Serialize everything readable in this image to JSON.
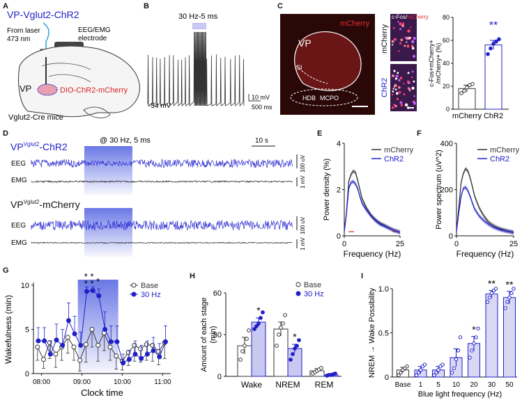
{
  "colors": {
    "blue": "#2020c8",
    "stim": "#5060e0",
    "black": "#111111",
    "red": "#dd2020",
    "gray": "#555555",
    "dark": "#333333"
  },
  "panels": {
    "A": "A",
    "B": "B",
    "C": "C",
    "D": "D",
    "E": "E",
    "F": "F",
    "G": "G",
    "H": "H",
    "I": "I"
  },
  "panel_a": {
    "title": "VP-Vglut2-ChR2",
    "laser": "From laser",
    "nm": "473 nm",
    "electrode1": "EEG/EMG",
    "electrode2": "electrode",
    "vp": "VP",
    "dio": "DIO-ChR2-mCherry",
    "mice": "Vglut2-Cre mice"
  },
  "panel_b": {
    "stim": "30 Hz-5 ms",
    "vm": "-54 mV",
    "scale_v": "10 mV",
    "scale_t": "500 ms"
  },
  "panel_c": {
    "mcherry_label": "mCherry",
    "vp": "VP",
    "si": "SI",
    "hdb": "HDB",
    "mcpo": "MCPO",
    "cfos": "c-Fos/",
    "cfos_m": "mCherry",
    "row1": "mCherry",
    "row2": "ChR2"
  },
  "panel_d": {
    "title1_a": "VP",
    "title1_sup": "Vglut2",
    "title1_b": "-ChR2",
    "title2_a": "VP",
    "title2_sup": "Vglut2",
    "title2_b": "-mCherry",
    "stim": "@ 30 Hz, 5 ms",
    "scale": "10 s",
    "eeg": "EEG",
    "emg": "EMG",
    "uv": "100 uV",
    "mv": "1 mV"
  },
  "chart_data": [
    {
      "id": "C",
      "type": "bar",
      "title": "",
      "categories": [
        "mCherry",
        "ChR2"
      ],
      "values": [
        18,
        56
      ],
      "errors": [
        3,
        4
      ],
      "points": [
        [
          14,
          16,
          19,
          21,
          22
        ],
        [
          48,
          53,
          57,
          59,
          61
        ]
      ],
      "ylabel": "c-Fos+mCherry+ /mCherry+ (%)",
      "ylabel1": "c-Fos+mCherry+",
      "ylabel2": "/mCherry+ (%)",
      "ylim": [
        0,
        80
      ],
      "yticks": [
        "0",
        "20",
        "40",
        "60",
        "80"
      ],
      "significance": "**"
    },
    {
      "id": "E",
      "type": "line",
      "xlabel": "Frequency (Hz)",
      "ylabel": "Power density (%)",
      "xlim": [
        0,
        25
      ],
      "ylim": [
        0,
        4
      ],
      "xticks": [
        "0",
        "25"
      ],
      "yticks": [
        "0",
        "2",
        "4"
      ],
      "legend": [
        "mCherry",
        "ChR2"
      ],
      "series": [
        {
          "name": "mCherry",
          "x": [
            0,
            1,
            2,
            3,
            4,
            5,
            6,
            7,
            8,
            10,
            12,
            14,
            16,
            18,
            20,
            22,
            25
          ],
          "y": [
            0.2,
            1.0,
            2.35,
            2.65,
            2.8,
            2.75,
            2.4,
            2.0,
            1.6,
            1.2,
            0.9,
            0.7,
            0.55,
            0.45,
            0.35,
            0.25,
            0.15
          ]
        },
        {
          "name": "ChR2",
          "x": [
            0,
            1,
            2,
            3,
            4,
            5,
            6,
            7,
            8,
            10,
            12,
            14,
            16,
            18,
            20,
            22,
            25
          ],
          "y": [
            0.2,
            1.0,
            2.05,
            2.3,
            2.35,
            2.25,
            2.05,
            1.7,
            1.4,
            1.1,
            0.85,
            0.65,
            0.5,
            0.42,
            0.33,
            0.25,
            0.15
          ]
        }
      ]
    },
    {
      "id": "F",
      "type": "line",
      "xlabel": "Frequency (Hz)",
      "ylabel": "Power spectrum (uV^2)",
      "xlim": [
        0,
        25
      ],
      "ylim": [
        0,
        400
      ],
      "xticks": [
        "0",
        "25"
      ],
      "yticks": [
        "0",
        "200",
        "400"
      ],
      "legend": [
        "mCherry",
        "ChR2"
      ],
      "series": [
        {
          "name": "mCherry",
          "x": [
            0,
            1,
            2,
            3,
            4,
            5,
            6,
            7,
            8,
            10,
            12,
            14,
            16,
            18,
            20,
            22,
            25
          ],
          "y": [
            20,
            120,
            230,
            270,
            290,
            280,
            250,
            210,
            170,
            120,
            85,
            60,
            45,
            35,
            28,
            22,
            15
          ]
        },
        {
          "name": "ChR2",
          "x": [
            0,
            1,
            2,
            3,
            4,
            5,
            6,
            7,
            8,
            10,
            12,
            14,
            16,
            18,
            20,
            22,
            25
          ],
          "y": [
            20,
            100,
            170,
            205,
            210,
            195,
            170,
            140,
            115,
            85,
            65,
            50,
            38,
            30,
            24,
            20,
            14
          ]
        }
      ]
    },
    {
      "id": "G",
      "type": "line",
      "xlabel": "Clock time",
      "ylabel": "Wakefulness (min)",
      "ylim": [
        0,
        10
      ],
      "yticks": [
        "0",
        "5",
        "10"
      ],
      "xticks": [
        "08:00",
        "09:00",
        "10:00",
        "11:00"
      ],
      "xlim": [
        7.8,
        11.2
      ],
      "legend": [
        "Base",
        "30 Hz"
      ],
      "stim_window": [
        8.9,
        9.9
      ],
      "series": [
        {
          "name": "Base",
          "x": [
            7.9,
            8.05,
            8.2,
            8.35,
            8.5,
            8.65,
            8.8,
            8.95,
            9.1,
            9.25,
            9.4,
            9.55,
            9.7,
            9.85,
            10.0,
            10.15,
            10.3,
            10.45,
            10.6,
            10.75,
            10.9,
            11.05
          ],
          "y": [
            3.0,
            1.6,
            3.5,
            2.2,
            3.0,
            4.1,
            3.0,
            1.5,
            3.3,
            5.0,
            3.2,
            4.6,
            3.0,
            2.0,
            1.4,
            2.4,
            3.2,
            2.8,
            3.3,
            3.2,
            2.5,
            3.5
          ],
          "err": [
            1.5,
            1.0,
            1.8,
            1.5,
            1.5,
            1.8,
            1.5,
            1.2,
            2.0,
            2.0,
            1.8,
            2.0,
            1.5,
            1.5,
            1.0,
            1.5,
            1.8,
            1.5,
            1.8,
            1.8,
            1.5,
            1.8
          ]
        },
        {
          "name": "30 Hz",
          "x": [
            7.9,
            8.05,
            8.2,
            8.35,
            8.5,
            8.65,
            8.8,
            8.95,
            9.1,
            9.25,
            9.4,
            9.55,
            9.7,
            9.85,
            10.0,
            10.15,
            10.3,
            10.45,
            10.6,
            10.75,
            10.9,
            11.05
          ],
          "y": [
            3.7,
            3.7,
            2.2,
            3.8,
            3.2,
            6.0,
            4.5,
            3.2,
            9.3,
            9.4,
            8.8,
            5.0,
            3.6,
            3.6,
            1.2,
            1.6,
            2.2,
            1.7,
            2.2,
            2.6,
            1.9,
            3.6
          ],
          "err": [
            1.5,
            1.5,
            1.5,
            1.8,
            1.8,
            2.0,
            2.0,
            1.5,
            0.5,
            0.4,
            0.8,
            2.0,
            1.8,
            1.8,
            1.0,
            1.0,
            1.5,
            1.5,
            1.5,
            1.5,
            1.5,
            1.8
          ]
        }
      ],
      "significance": [
        "**",
        "**",
        "*"
      ]
    },
    {
      "id": "H",
      "type": "bar",
      "ylabel": "Amount of each stage (min)",
      "categories": [
        "Wake",
        "NREM",
        "REM"
      ],
      "ylim": [
        0,
        60
      ],
      "yticks": [
        "0",
        "30",
        "60"
      ],
      "legend": [
        "Base",
        "30 Hz"
      ],
      "series": [
        {
          "name": "Base",
          "values": [
            22,
            34,
            4
          ],
          "errors": [
            6,
            5,
            1.5
          ],
          "points": [
            [
              12,
              18,
              22,
              27,
              33
            ],
            [
              22,
              30,
              35,
              38,
              44
            ],
            [
              2,
              3,
              4,
              5,
              6
            ]
          ]
        },
        {
          "name": "30 Hz",
          "values": [
            39,
            20,
            1
          ],
          "errors": [
            3,
            3,
            0.5
          ],
          "points": [
            [
              34,
              36,
              38,
              42,
              46
            ],
            [
              12,
              16,
              20,
              22,
              26
            ],
            [
              0.5,
              1,
              1,
              1.5,
              2
            ]
          ]
        }
      ],
      "significance": [
        "*",
        "*",
        ""
      ]
    },
    {
      "id": "I",
      "type": "bar",
      "ylabel": "NREM → Wake Possibility",
      "xlabel": "Blue light frequency (Hz)",
      "categories": [
        "Base",
        "1",
        "5",
        "10",
        "20",
        "30",
        "50"
      ],
      "values": [
        0.08,
        0.08,
        0.08,
        0.22,
        0.38,
        0.94,
        0.9
      ],
      "errors": [
        0.03,
        0.04,
        0.04,
        0.1,
        0.08,
        0.04,
        0.07
      ],
      "ylim": [
        0,
        1.0
      ],
      "yticks": [
        "0",
        "0.5",
        "1.0"
      ],
      "points": [
        [
          0.02,
          0.05,
          0.08,
          0.1,
          0.12
        ],
        [
          0.02,
          0.05,
          0.08,
          0.12,
          0.14
        ],
        [
          0.02,
          0.05,
          0.08,
          0.12,
          0.14
        ],
        [
          0.05,
          0.1,
          0.2,
          0.3,
          0.45
        ],
        [
          0.22,
          0.3,
          0.38,
          0.45,
          0.55
        ],
        [
          0.85,
          0.9,
          0.95,
          0.98,
          1.0
        ],
        [
          0.78,
          0.85,
          0.9,
          0.95,
          1.0
        ]
      ],
      "significance": [
        "",
        "",
        "",
        "",
        "*",
        "**",
        "**"
      ]
    }
  ]
}
